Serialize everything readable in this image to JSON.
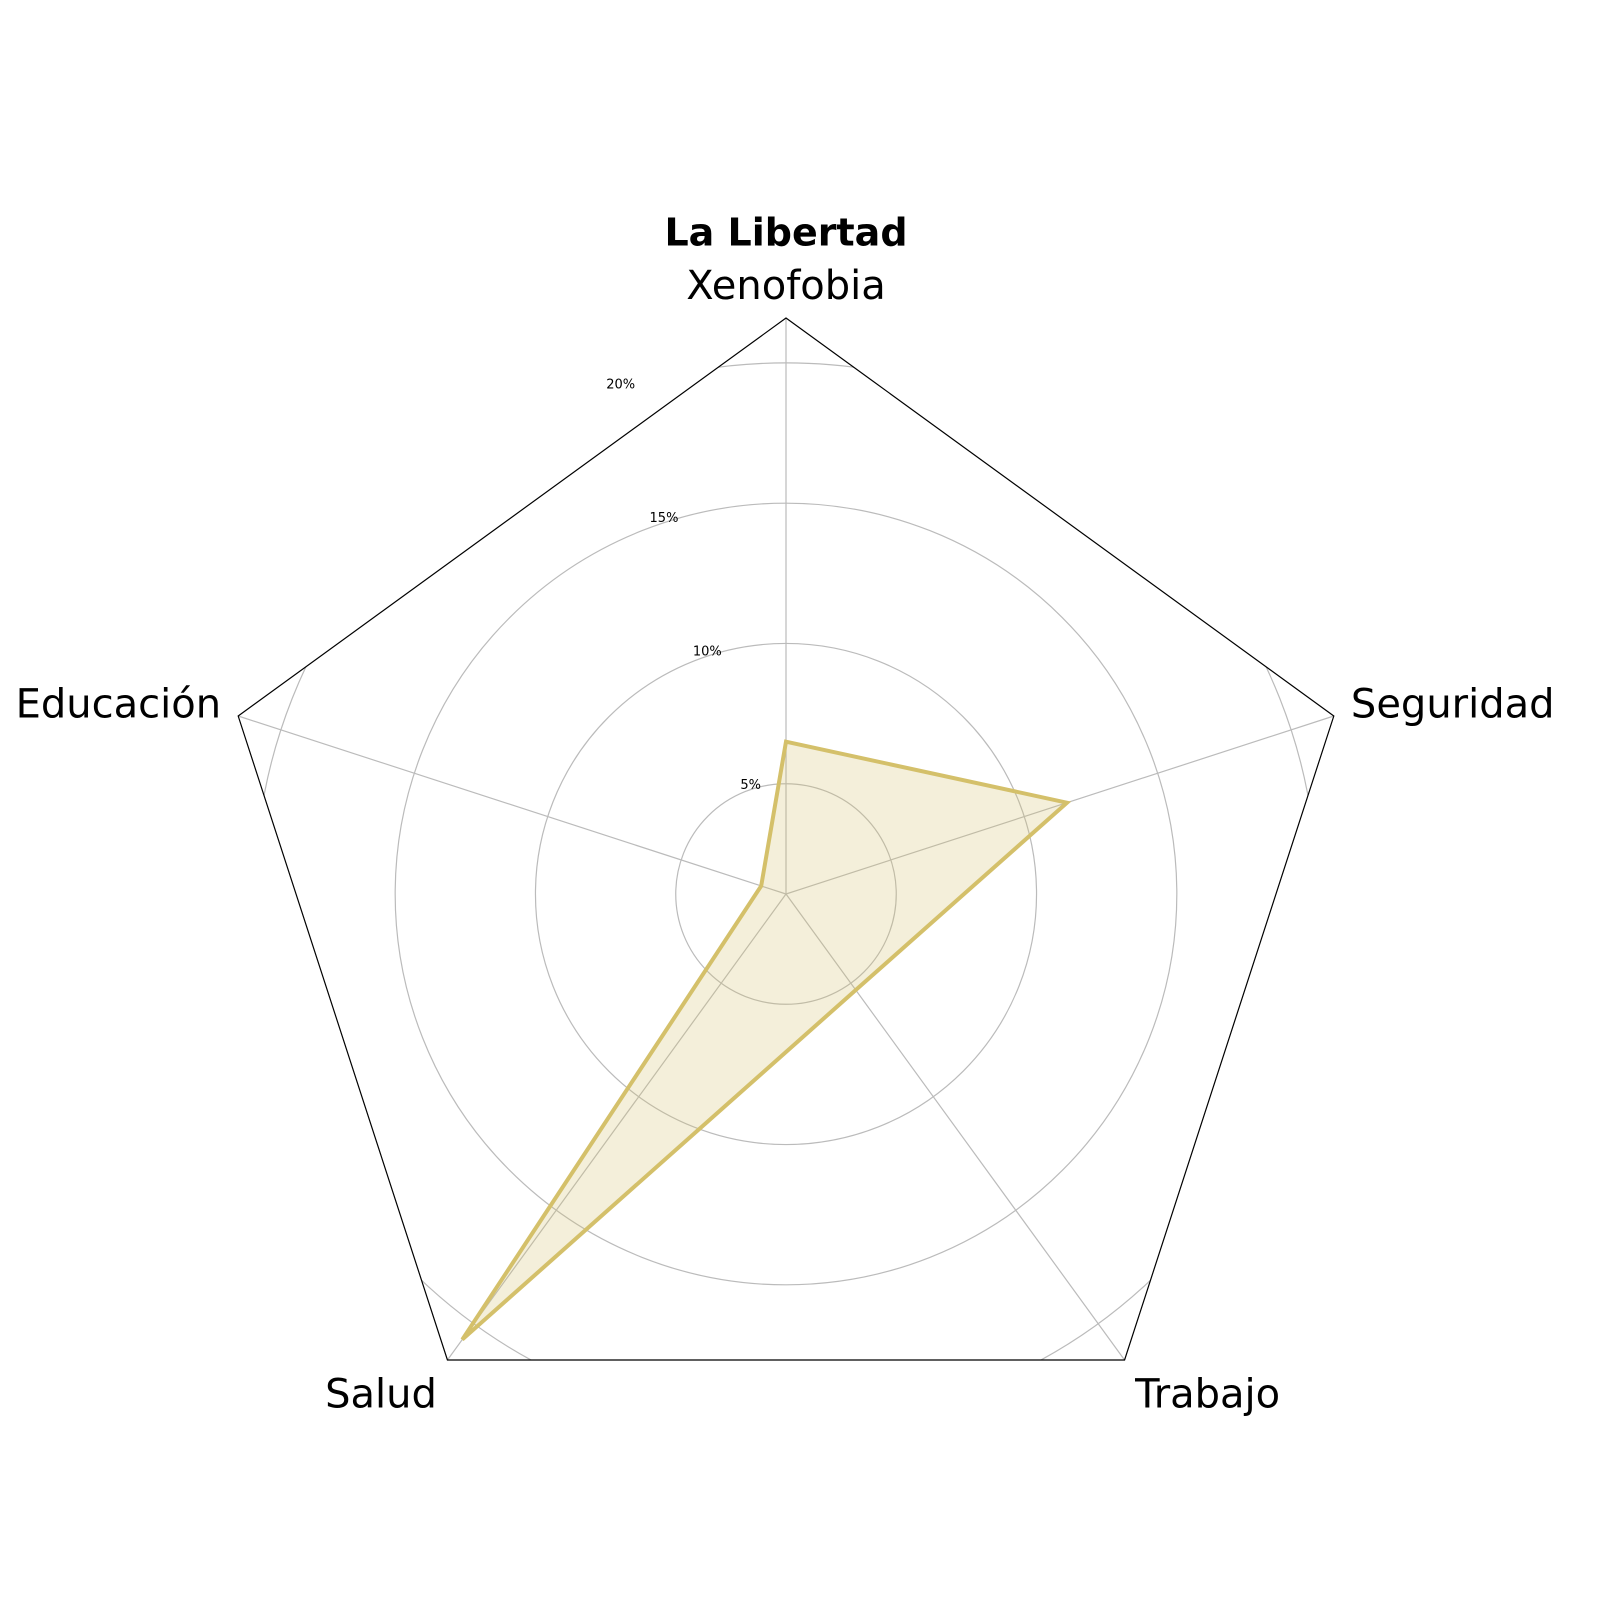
{
  "chart_data": {
    "type": "radar",
    "title": "La Libertad",
    "categories": [
      "Xenofobia",
      "Seguridad",
      "Trabajo",
      "Salud",
      "Educación"
    ],
    "series": [
      {
        "name": "La Libertad",
        "color": "#d4c06a",
        "values": [
          6.5,
          11.6,
          5.3,
          20.7,
          2.0
        ]
      }
    ],
    "ylim": [
      1.07,
      21.6
    ],
    "yticks": [
      {
        "value": 5,
        "label": "5%"
      },
      {
        "value": 10,
        "label": "10%"
      },
      {
        "value": 15,
        "label": "15%"
      },
      {
        "value": 20,
        "label": "20%"
      }
    ],
    "grid": true
  }
}
